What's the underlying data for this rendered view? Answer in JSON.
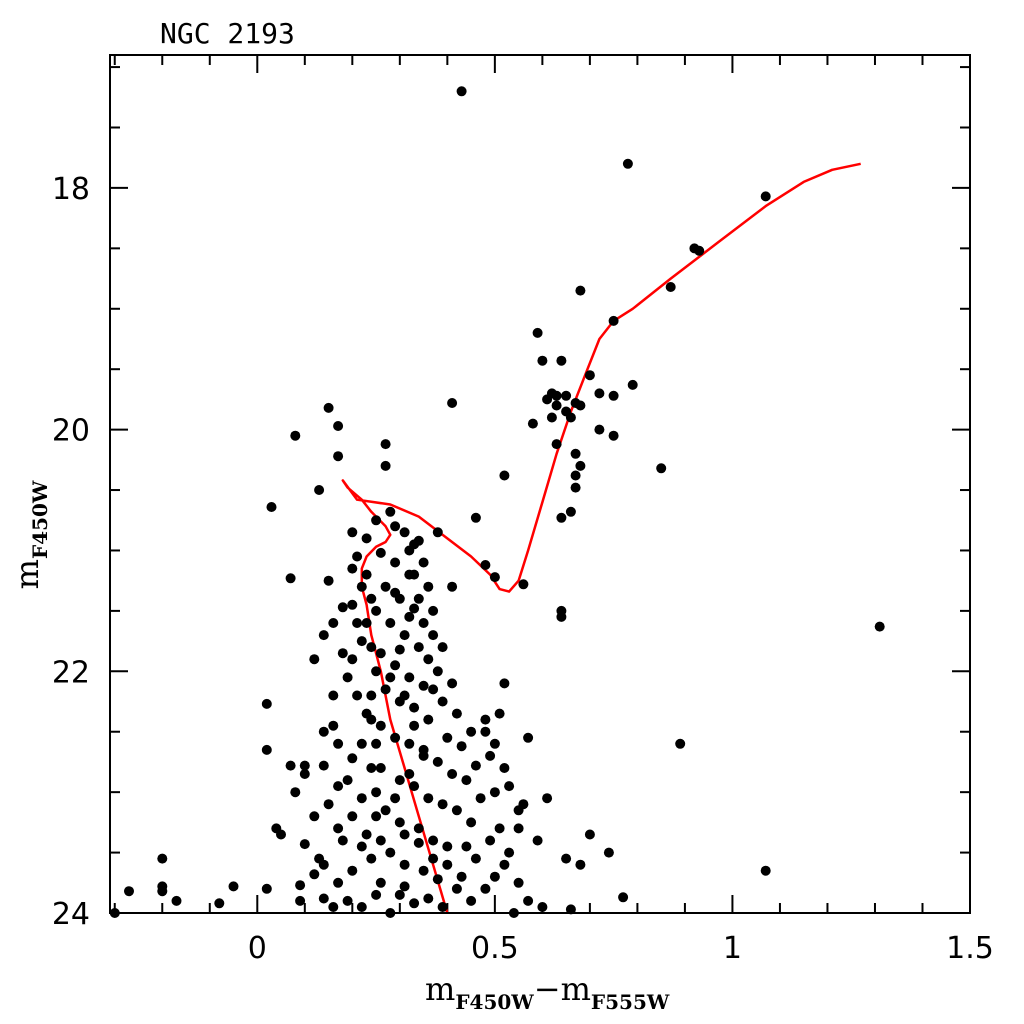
{
  "chart_data": {
    "type": "scatter",
    "title": "NGC 2193",
    "xlabel": {
      "main": "m",
      "sub1": "F450W",
      "dash": "−",
      "main2": "m",
      "sub2": "F555W"
    },
    "ylabel": {
      "main": "m",
      "sub": "F450W"
    },
    "xlim": [
      -0.31,
      1.5
    ],
    "ylim": [
      16.9,
      24.0
    ],
    "y_inverted": true,
    "xticks": [
      0,
      0.5,
      1,
      1.5
    ],
    "xtick_labels": [
      "0",
      "0.5",
      "1",
      "1.5"
    ],
    "yticks": [
      18,
      20,
      22,
      24
    ],
    "ytick_labels": [
      "18",
      "20",
      "22",
      "24"
    ],
    "x_minor_step": 0.1,
    "y_minor_step": 0.5,
    "grid": false,
    "colors": {
      "points": "#000000",
      "isochrone": "#ff0000",
      "frame": "#000000"
    },
    "series": [
      {
        "type": "scatter",
        "points": [
          [
            0.43,
            17.2
          ],
          [
            0.78,
            17.8
          ],
          [
            1.07,
            18.07
          ],
          [
            0.92,
            18.5
          ],
          [
            0.93,
            18.52
          ],
          [
            0.68,
            18.85
          ],
          [
            0.87,
            18.82
          ],
          [
            0.75,
            19.1
          ],
          [
            0.59,
            19.2
          ],
          [
            0.6,
            19.43
          ],
          [
            0.64,
            19.43
          ],
          [
            0.7,
            19.55
          ],
          [
            0.79,
            19.63
          ],
          [
            0.72,
            19.7
          ],
          [
            0.62,
            19.7
          ],
          [
            0.63,
            19.72
          ],
          [
            0.65,
            19.72
          ],
          [
            0.75,
            19.72
          ],
          [
            0.67,
            19.78
          ],
          [
            0.68,
            19.8
          ],
          [
            0.61,
            19.75
          ],
          [
            0.63,
            19.8
          ],
          [
            0.65,
            19.85
          ],
          [
            0.66,
            19.9
          ],
          [
            0.62,
            19.9
          ],
          [
            0.58,
            19.95
          ],
          [
            0.72,
            20.0
          ],
          [
            0.75,
            20.05
          ],
          [
            0.41,
            19.78
          ],
          [
            0.15,
            19.82
          ],
          [
            0.17,
            19.97
          ],
          [
            0.63,
            20.12
          ],
          [
            0.67,
            20.2
          ],
          [
            0.68,
            20.3
          ],
          [
            0.67,
            20.38
          ],
          [
            0.52,
            20.38
          ],
          [
            0.85,
            20.32
          ],
          [
            0.08,
            20.05
          ],
          [
            0.27,
            20.12
          ],
          [
            0.17,
            20.22
          ],
          [
            0.27,
            20.3
          ],
          [
            0.13,
            20.5
          ],
          [
            0.67,
            20.48
          ],
          [
            0.66,
            20.68
          ],
          [
            0.64,
            20.73
          ],
          [
            0.46,
            20.73
          ],
          [
            0.38,
            20.85
          ],
          [
            0.03,
            20.64
          ],
          [
            0.2,
            20.85
          ],
          [
            0.48,
            21.12
          ],
          [
            0.5,
            21.22
          ],
          [
            0.41,
            21.3
          ],
          [
            0.56,
            21.28
          ],
          [
            0.64,
            21.5
          ],
          [
            0.64,
            21.55
          ],
          [
            1.31,
            21.63
          ],
          [
            0.07,
            21.23
          ],
          [
            0.02,
            22.27
          ],
          [
            0.52,
            22.1
          ],
          [
            0.89,
            22.6
          ],
          [
            0.57,
            22.55
          ],
          [
            0.61,
            23.05
          ],
          [
            0.55,
            23.15
          ],
          [
            0.59,
            23.4
          ],
          [
            0.7,
            23.35
          ],
          [
            0.74,
            23.5
          ],
          [
            0.65,
            23.55
          ],
          [
            0.68,
            23.6
          ],
          [
            0.77,
            23.87
          ],
          [
            0.66,
            23.97
          ],
          [
            1.07,
            23.65
          ],
          [
            -0.2,
            23.55
          ],
          [
            -0.2,
            23.78
          ],
          [
            -0.2,
            23.82
          ],
          [
            -0.27,
            23.82
          ],
          [
            -0.17,
            23.9
          ],
          [
            -0.3,
            24.0
          ],
          [
            -0.05,
            23.78
          ],
          [
            -0.08,
            23.92
          ],
          [
            0.02,
            23.8
          ],
          [
            0.04,
            23.3
          ],
          [
            0.02,
            22.65
          ],
          [
            0.07,
            22.78
          ],
          [
            0.1,
            22.85
          ],
          [
            0.08,
            23.0
          ],
          [
            0.05,
            23.35
          ],
          [
            0.09,
            23.77
          ],
          [
            0.09,
            23.9
          ],
          [
            0.12,
            23.68
          ],
          [
            0.14,
            23.88
          ],
          [
            0.16,
            23.95
          ],
          [
            0.1,
            23.43
          ],
          [
            0.12,
            23.2
          ],
          [
            0.13,
            23.55
          ],
          [
            0.1,
            22.78
          ],
          [
            0.12,
            21.9
          ],
          [
            0.14,
            21.7
          ],
          [
            0.15,
            21.25
          ],
          [
            0.18,
            21.47
          ],
          [
            0.16,
            21.6
          ],
          [
            0.18,
            21.85
          ],
          [
            0.16,
            22.2
          ],
          [
            0.16,
            22.45
          ],
          [
            0.14,
            22.5
          ],
          [
            0.17,
            22.6
          ],
          [
            0.14,
            22.78
          ],
          [
            0.17,
            22.95
          ],
          [
            0.15,
            23.1
          ],
          [
            0.17,
            23.3
          ],
          [
            0.18,
            23.4
          ],
          [
            0.14,
            23.6
          ],
          [
            0.17,
            23.75
          ],
          [
            0.19,
            23.9
          ],
          [
            0.2,
            23.65
          ],
          [
            0.22,
            23.95
          ],
          [
            0.25,
            23.85
          ],
          [
            0.26,
            23.75
          ],
          [
            0.28,
            24.0
          ],
          [
            0.24,
            23.55
          ],
          [
            0.22,
            23.45
          ],
          [
            0.2,
            23.2
          ],
          [
            0.22,
            23.05
          ],
          [
            0.19,
            22.9
          ],
          [
            0.2,
            22.72
          ],
          [
            0.22,
            22.6
          ],
          [
            0.23,
            22.35
          ],
          [
            0.21,
            22.2
          ],
          [
            0.19,
            22.05
          ],
          [
            0.2,
            21.9
          ],
          [
            0.22,
            21.75
          ],
          [
            0.21,
            21.6
          ],
          [
            0.2,
            21.45
          ],
          [
            0.22,
            21.3
          ],
          [
            0.2,
            21.15
          ],
          [
            0.21,
            21.05
          ],
          [
            0.23,
            20.9
          ],
          [
            0.25,
            20.75
          ],
          [
            0.28,
            20.68
          ],
          [
            0.29,
            20.8
          ],
          [
            0.31,
            20.85
          ],
          [
            0.33,
            20.95
          ],
          [
            0.26,
            21.02
          ],
          [
            0.29,
            21.1
          ],
          [
            0.32,
            21.2
          ],
          [
            0.27,
            21.3
          ],
          [
            0.3,
            21.4
          ],
          [
            0.33,
            21.48
          ],
          [
            0.25,
            21.5
          ],
          [
            0.28,
            21.6
          ],
          [
            0.31,
            21.7
          ],
          [
            0.34,
            21.8
          ],
          [
            0.26,
            21.85
          ],
          [
            0.29,
            21.95
          ],
          [
            0.32,
            22.05
          ],
          [
            0.35,
            22.12
          ],
          [
            0.27,
            22.15
          ],
          [
            0.3,
            22.25
          ],
          [
            0.33,
            22.3
          ],
          [
            0.36,
            22.4
          ],
          [
            0.26,
            22.45
          ],
          [
            0.29,
            22.55
          ],
          [
            0.32,
            22.6
          ],
          [
            0.35,
            22.7
          ],
          [
            0.38,
            22.75
          ],
          [
            0.26,
            22.8
          ],
          [
            0.3,
            22.9
          ],
          [
            0.33,
            22.95
          ],
          [
            0.36,
            23.05
          ],
          [
            0.39,
            23.1
          ],
          [
            0.27,
            23.15
          ],
          [
            0.3,
            23.25
          ],
          [
            0.34,
            23.3
          ],
          [
            0.37,
            23.4
          ],
          [
            0.4,
            23.45
          ],
          [
            0.28,
            23.5
          ],
          [
            0.31,
            23.6
          ],
          [
            0.35,
            23.65
          ],
          [
            0.38,
            23.72
          ],
          [
            0.42,
            23.8
          ],
          [
            0.3,
            23.85
          ],
          [
            0.33,
            23.92
          ],
          [
            0.45,
            23.9
          ],
          [
            0.48,
            23.8
          ],
          [
            0.5,
            23.7
          ],
          [
            0.52,
            23.6
          ],
          [
            0.46,
            23.55
          ],
          [
            0.44,
            23.45
          ],
          [
            0.49,
            23.4
          ],
          [
            0.51,
            23.3
          ],
          [
            0.45,
            23.25
          ],
          [
            0.42,
            23.15
          ],
          [
            0.47,
            23.05
          ],
          [
            0.5,
            23.0
          ],
          [
            0.44,
            22.9
          ],
          [
            0.41,
            22.85
          ],
          [
            0.46,
            22.78
          ],
          [
            0.49,
            22.7
          ],
          [
            0.43,
            22.62
          ],
          [
            0.4,
            22.55
          ],
          [
            0.45,
            22.5
          ],
          [
            0.48,
            22.4
          ],
          [
            0.42,
            22.35
          ],
          [
            0.39,
            22.25
          ],
          [
            0.37,
            22.15
          ],
          [
            0.41,
            22.1
          ],
          [
            0.38,
            22.0
          ],
          [
            0.36,
            21.9
          ],
          [
            0.39,
            21.8
          ],
          [
            0.37,
            21.7
          ],
          [
            0.35,
            21.6
          ],
          [
            0.37,
            21.5
          ],
          [
            0.34,
            21.4
          ],
          [
            0.36,
            21.3
          ],
          [
            0.33,
            21.2
          ],
          [
            0.35,
            21.1
          ],
          [
            0.32,
            21.0
          ],
          [
            0.34,
            20.92
          ],
          [
            0.23,
            21.2
          ],
          [
            0.24,
            21.4
          ],
          [
            0.23,
            21.6
          ],
          [
            0.24,
            21.8
          ],
          [
            0.25,
            22.0
          ],
          [
            0.24,
            22.2
          ],
          [
            0.24,
            22.4
          ],
          [
            0.25,
            22.6
          ],
          [
            0.24,
            22.8
          ],
          [
            0.25,
            23.0
          ],
          [
            0.25,
            23.2
          ],
          [
            0.23,
            23.35
          ],
          [
            0.26,
            23.4
          ],
          [
            0.55,
            23.75
          ],
          [
            0.57,
            23.9
          ],
          [
            0.54,
            24.0
          ],
          [
            0.6,
            23.95
          ],
          [
            0.53,
            23.5
          ],
          [
            0.55,
            23.3
          ],
          [
            0.56,
            23.1
          ],
          [
            0.53,
            22.95
          ],
          [
            0.52,
            22.8
          ],
          [
            0.5,
            22.6
          ],
          [
            0.48,
            22.5
          ],
          [
            0.51,
            22.35
          ],
          [
            0.31,
            23.78
          ],
          [
            0.36,
            23.88
          ],
          [
            0.39,
            23.95
          ],
          [
            0.43,
            23.7
          ],
          [
            0.4,
            23.6
          ],
          [
            0.37,
            23.55
          ],
          [
            0.34,
            23.42
          ],
          [
            0.31,
            23.35
          ],
          [
            0.29,
            23.05
          ],
          [
            0.32,
            22.85
          ],
          [
            0.35,
            22.65
          ],
          [
            0.33,
            22.45
          ],
          [
            0.31,
            22.2
          ],
          [
            0.28,
            22.05
          ],
          [
            0.3,
            21.82
          ],
          [
            0.32,
            21.55
          ],
          [
            0.29,
            21.35
          ]
        ]
      },
      {
        "type": "line",
        "name": "",
        "x": [
          0.4,
          0.37,
          0.34,
          0.31,
          0.28,
          0.26,
          0.24,
          0.23,
          0.22,
          0.22,
          0.23,
          0.25,
          0.27,
          0.28,
          0.27,
          0.24,
          0.22,
          0.19,
          0.18,
          0.21,
          0.28,
          0.34,
          0.4,
          0.45,
          0.49,
          0.51,
          0.53,
          0.55,
          0.57,
          0.6,
          0.63,
          0.66,
          0.69,
          0.72,
          0.75,
          0.79,
          0.87,
          0.97,
          1.07,
          1.15,
          1.21,
          1.27
        ],
        "y": [
          24.0,
          23.6,
          23.2,
          22.8,
          22.4,
          22.0,
          21.7,
          21.45,
          21.3,
          21.15,
          21.05,
          20.97,
          20.93,
          20.87,
          20.8,
          20.68,
          20.58,
          20.48,
          20.42,
          20.58,
          20.62,
          20.72,
          20.9,
          21.05,
          21.2,
          21.32,
          21.34,
          21.25,
          21.0,
          20.6,
          20.2,
          19.85,
          19.55,
          19.25,
          19.1,
          19.0,
          18.75,
          18.45,
          18.15,
          17.95,
          17.85,
          17.8
        ]
      }
    ]
  }
}
